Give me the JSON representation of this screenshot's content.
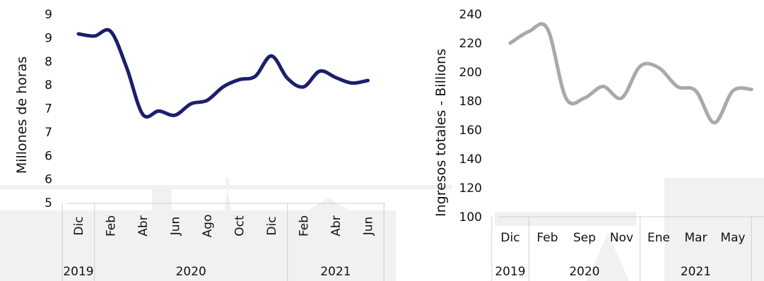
{
  "chart_data": [
    {
      "type": "line",
      "title": "",
      "ylabel": "Millones de horas",
      "xlabel": "",
      "y_ticks": [
        "5",
        "6",
        "6",
        "7",
        "7",
        "8",
        "8",
        "9",
        "9"
      ],
      "ylim": [
        5,
        9
      ],
      "categories": [
        "Dic",
        "Feb",
        "Abr",
        "Jun",
        "Ago",
        "Oct",
        "Dic",
        "Feb",
        "Abr",
        "Jun"
      ],
      "year_groups": [
        {
          "label": "2019",
          "count": 1
        },
        {
          "label": "2020",
          "count": 6
        },
        {
          "label": "2021",
          "count": 3
        }
      ],
      "x": [
        0,
        0.5,
        1,
        1.5,
        2,
        2.5,
        3,
        3.5,
        4,
        4.5,
        5,
        5.5,
        6,
        6.5,
        7,
        7.5,
        8,
        8.5,
        9
      ],
      "series": [
        {
          "color": "#1b1f6b",
          "values": [
            8.7,
            8.65,
            8.76,
            7.9,
            6.8,
            6.88,
            6.78,
            7.05,
            7.13,
            7.45,
            7.62,
            7.7,
            8.18,
            7.65,
            7.45,
            7.82,
            7.67,
            7.54,
            7.6
          ]
        }
      ],
      "grid": false,
      "legend": "none"
    },
    {
      "type": "line",
      "title": "",
      "ylabel": "Ingresos totales - Billions",
      "xlabel": "",
      "y_ticks": [
        "100",
        "120",
        "140",
        "160",
        "180",
        "200",
        "220",
        "240"
      ],
      "ylim": [
        100,
        240
      ],
      "categories": [
        "Dic",
        "Feb",
        "Sep",
        "Nov",
        "Ene",
        "Mar",
        "May"
      ],
      "year_groups": [
        {
          "label": "2019",
          "count": 1
        },
        {
          "label": "2020",
          "count": 3
        },
        {
          "label": "2021",
          "count": 3
        }
      ],
      "x": [
        0,
        0.5,
        1,
        1.5,
        2,
        2.5,
        3,
        3.5,
        4,
        4.5,
        5,
        5.5,
        6,
        6.5
      ],
      "series": [
        {
          "color": "#a9a9a9",
          "values": [
            220,
            228,
            230,
            182,
            182,
            190,
            182,
            204,
            203,
            190,
            187,
            165,
            187,
            188
          ]
        }
      ],
      "grid": false,
      "legend": "none"
    }
  ]
}
